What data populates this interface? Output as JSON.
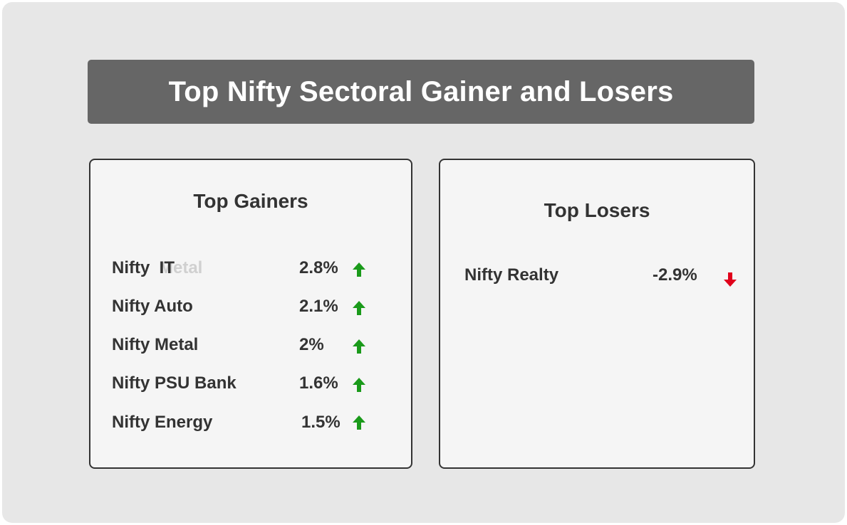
{
  "title": "Top Nifty Sectoral Gainer and Losers",
  "gainers": {
    "heading": "Top Gainers",
    "items": [
      {
        "name": "Nifty  IT",
        "value": "2.8%",
        "direction": "up"
      },
      {
        "name": "Nifty Auto",
        "value": "2.1%",
        "direction": "up"
      },
      {
        "name": "Nifty Metal",
        "value": "2%",
        "direction": "up"
      },
      {
        "name": "Nifty PSU Bank",
        "value": "1.6%",
        "direction": "up"
      },
      {
        "name": "Nifty Energy",
        "value": "1.5%",
        "direction": "up"
      }
    ],
    "ghost_text": "Metal",
    "arrow_icon": "arrow-up-icon",
    "arrow_color": "#1a9a1a"
  },
  "losers": {
    "heading": "Top Losers",
    "items": [
      {
        "name": "Nifty Realty",
        "value": "-2.9%",
        "direction": "down"
      }
    ],
    "arrow_icon": "arrow-down-icon",
    "arrow_color": "#e0001b"
  },
  "colors": {
    "background": "#e7e7e7",
    "banner": "#666666",
    "panel": "#f5f5f5",
    "text": "#333333"
  }
}
